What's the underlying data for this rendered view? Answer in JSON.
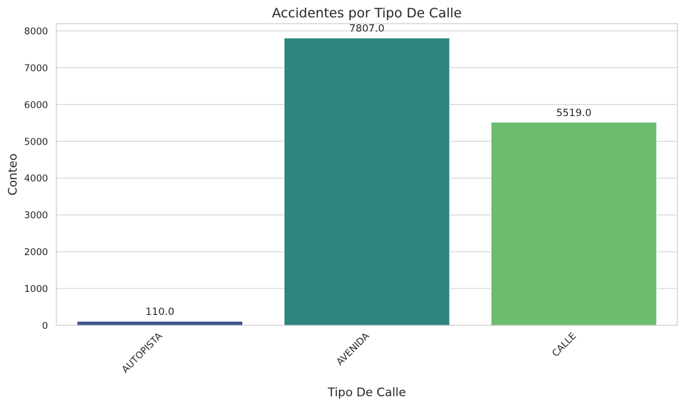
{
  "chart_data": {
    "type": "bar",
    "title": "Accidentes por Tipo De Calle",
    "xlabel": "Tipo De Calle",
    "ylabel": "Conteo",
    "categories": [
      "AUTOPISTA",
      "AVENIDA",
      "CALLE"
    ],
    "values": [
      110.0,
      7807.0,
      5519.0
    ],
    "value_labels": [
      "110.0",
      "7807.0",
      "5519.0"
    ],
    "colors": [
      "#3b528b",
      "#2e8480",
      "#6cbd6e"
    ],
    "yticks": [
      0,
      1000,
      2000,
      3000,
      4000,
      5000,
      6000,
      7000,
      8000
    ],
    "ylim": [
      0,
      8197
    ],
    "grid": true,
    "legend": "none"
  }
}
